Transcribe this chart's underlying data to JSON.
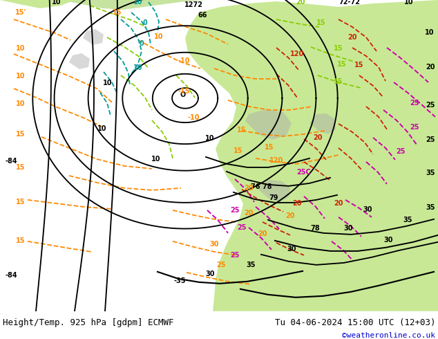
{
  "title_left": "Height/Temp. 925 hPa [gdpm] ECMWF",
  "title_right": "Tu 04-06-2024 15:00 UTC (12+03)",
  "credit": "©weatheronline.co.uk",
  "bg_gray": "#d8d8d8",
  "land_green": "#c8e896",
  "land_green2": "#b0d878",
  "color_orange": "#ff8800",
  "color_green": "#88cc00",
  "color_teal": "#009999",
  "color_red": "#cc2200",
  "color_magenta": "#cc00aa",
  "title_fontsize": 9,
  "credit_color": "#0000cc",
  "credit_fontsize": 8
}
